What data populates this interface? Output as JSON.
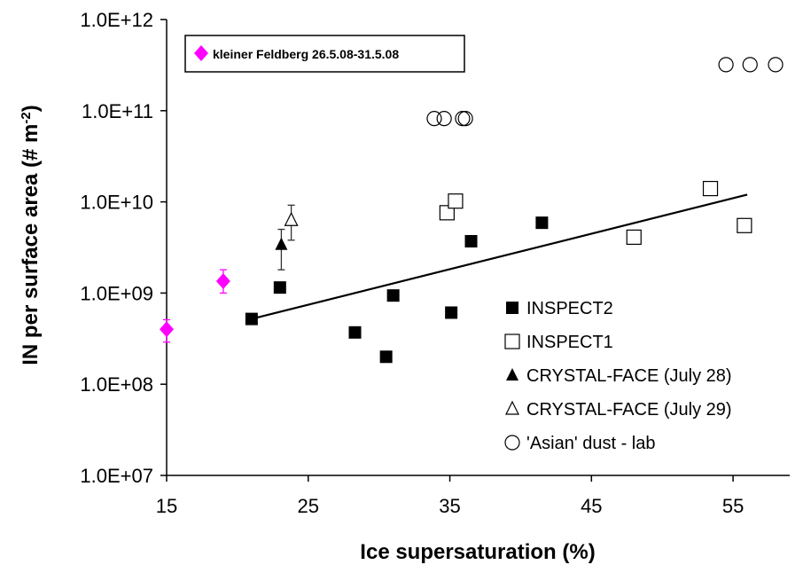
{
  "chart_data": {
    "type": "scatter",
    "xlabel": "Ice supersaturation (%)",
    "ylabel": "IN per surface area (# m",
    "ylabel_exponent": "-2",
    "ylabel_close": ")",
    "xlim": [
      15,
      59
    ],
    "ylim": [
      10000000,
      1000000000000
    ],
    "yscale": "log",
    "x_ticks": [
      "15",
      "25",
      "35",
      "45",
      "55"
    ],
    "x_tick_values": [
      15,
      25,
      35,
      45,
      55
    ],
    "y_ticks": [
      "1.0E+07",
      "1.0E+08",
      "1.0E+09",
      "1.0E+10",
      "1.0E+11",
      "1.0E+12"
    ],
    "y_tick_values": [
      10000000,
      100000000,
      1000000000,
      10000000000,
      100000000000,
      1000000000000
    ],
    "grid": false,
    "legend_position": "bottom-right",
    "inset_legend": {
      "label": "kleiner Feldberg 26.5.08-31.5.08",
      "position": "top-left",
      "color": "#ff00ff"
    },
    "series": [
      {
        "name": "kleiner Feldberg 26.5.08-31.5.08",
        "marker": "diamond",
        "color": "#ff00ff",
        "show_in_main_legend": false,
        "points": [
          {
            "x": 15,
            "y": 400000000,
            "err_low": 290000000,
            "err_high": 510000000
          },
          {
            "x": 19,
            "y": 1350000000,
            "err_low": 1000000000,
            "err_high": 1800000000
          }
        ]
      },
      {
        "name": "INSPECT2",
        "marker": "square-filled",
        "color": "#000000",
        "points": [
          {
            "x": 21,
            "y": 520000000
          },
          {
            "x": 23,
            "y": 1150000000
          },
          {
            "x": 28.3,
            "y": 370000000
          },
          {
            "x": 30.5,
            "y": 200000000
          },
          {
            "x": 31,
            "y": 940000000
          },
          {
            "x": 35.1,
            "y": 610000000
          },
          {
            "x": 36.5,
            "y": 3700000000
          },
          {
            "x": 41.5,
            "y": 5900000000
          }
        ]
      },
      {
        "name": "INSPECT1",
        "marker": "square-open",
        "color": "#000000",
        "points": [
          {
            "x": 34.8,
            "y": 7600000000
          },
          {
            "x": 35.4,
            "y": 10200000000
          },
          {
            "x": 48,
            "y": 4100000000
          },
          {
            "x": 53.4,
            "y": 14000000000
          },
          {
            "x": 55.8,
            "y": 5500000000
          }
        ]
      },
      {
        "name": "CRYSTAL-FACE (July 28)",
        "marker": "triangle-filled",
        "color": "#000000",
        "points": [
          {
            "x": 23.1,
            "y": 3400000000,
            "err_low": 1800000000,
            "err_high": 5000000000
          }
        ]
      },
      {
        "name": "CRYSTAL-FACE (July 29)",
        "marker": "triangle-open",
        "color": "#000000",
        "points": [
          {
            "x": 23.8,
            "y": 6300000000,
            "err_low": 3800000000,
            "err_high": 9200000000
          }
        ]
      },
      {
        "name": "'Asian' dust - lab",
        "marker": "circle-open",
        "color": "#000000",
        "points": [
          {
            "x": 33.9,
            "y": 82000000000
          },
          {
            "x": 34.6,
            "y": 82000000000
          },
          {
            "x": 35.9,
            "y": 82000000000
          },
          {
            "x": 36.1,
            "y": 82000000000
          },
          {
            "x": 54.5,
            "y": 320000000000
          },
          {
            "x": 56.2,
            "y": 320000000000
          },
          {
            "x": 58,
            "y": 320000000000
          }
        ]
      }
    ],
    "trendline": {
      "x1": 21,
      "y1": 520000000,
      "x2": 56,
      "y2": 12000000000
    }
  }
}
